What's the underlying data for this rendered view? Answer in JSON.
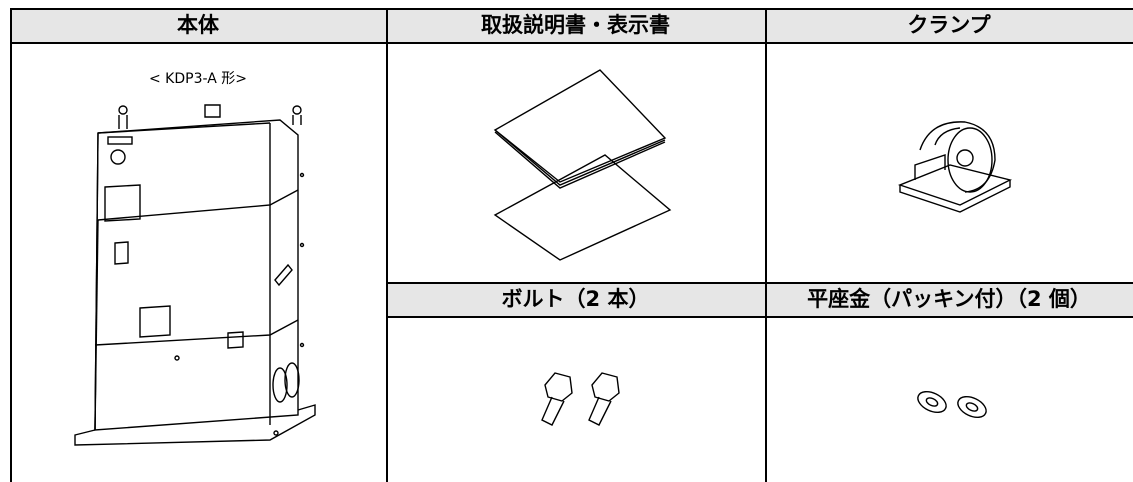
{
  "table": {
    "headers": [
      "本体",
      "取扱説明書・表示書",
      "クランプ"
    ],
    "main_caption": "< KDP3-A 形>",
    "subheaders": [
      "ボルト（2 本）",
      "平座金（パッキン付）（2 個）"
    ]
  }
}
